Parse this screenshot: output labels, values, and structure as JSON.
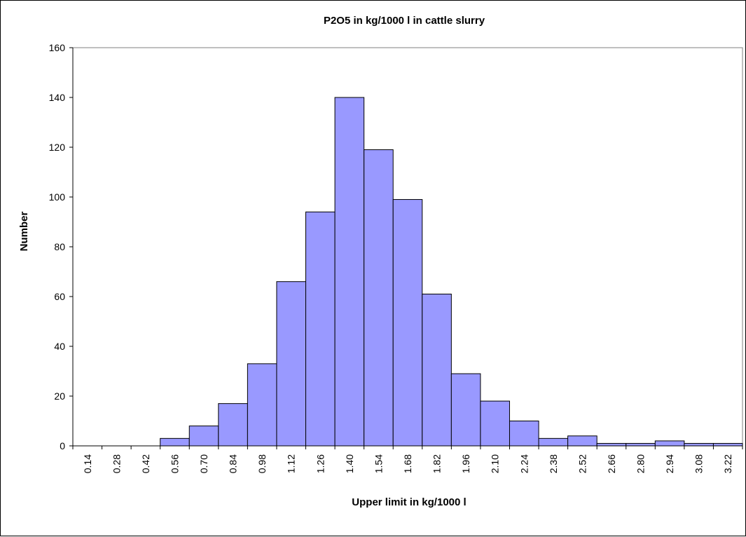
{
  "chart_data": {
    "type": "bar",
    "title": "P2O5 in kg/1000 l in cattle slurry",
    "xlabel": "Upper limit in kg/1000 l",
    "ylabel": "Number",
    "categories": [
      "0.14",
      "0.28",
      "0.42",
      "0.56",
      "0.70",
      "0.84",
      "0.98",
      "1.12",
      "1.26",
      "1.40",
      "1.54",
      "1.68",
      "1.82",
      "1.96",
      "2.10",
      "2.24",
      "2.38",
      "2.52",
      "2.66",
      "2.80",
      "2.94",
      "3.08",
      "3.22"
    ],
    "values": [
      0,
      0,
      0,
      3,
      8,
      17,
      33,
      66,
      94,
      140,
      119,
      99,
      61,
      29,
      18,
      10,
      3,
      4,
      1,
      1,
      2,
      1,
      1
    ],
    "ylim": [
      0,
      160
    ],
    "yticks": [
      0,
      20,
      40,
      60,
      80,
      100,
      120,
      140,
      160
    ],
    "grid": false,
    "legend": false,
    "colors": {
      "bar_fill": "#9999ff",
      "bar_stroke": "#000000",
      "plot_border": "#808080"
    }
  }
}
